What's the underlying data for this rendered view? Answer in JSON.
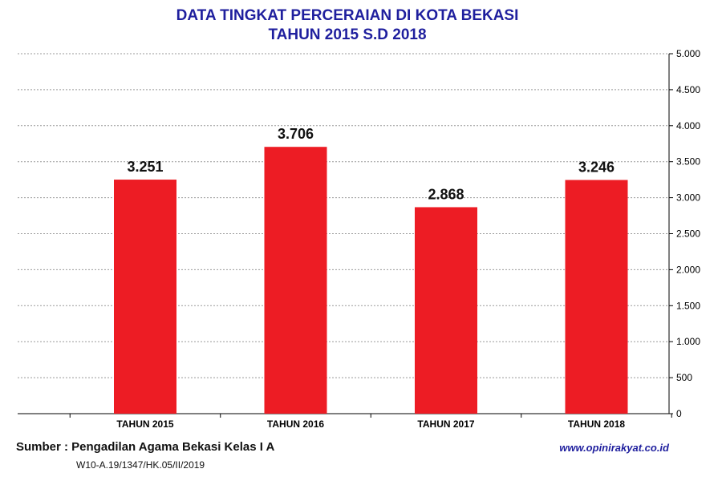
{
  "chart_data": {
    "type": "bar",
    "title": "DATA TINGKAT PERCERAIAN DI KOTA BEKASI",
    "subtitle": "TAHUN 2015 S.D 2018",
    "categories": [
      "TAHUN 2015",
      "TAHUN 2016",
      "TAHUN 2017",
      "TAHUN 2018"
    ],
    "values": [
      3251,
      3706,
      2868,
      3246
    ],
    "value_labels": [
      "3.251",
      "3.706",
      "2.868",
      "3.246"
    ],
    "ylim": [
      0,
      5000
    ],
    "y_ticks": [
      0,
      500,
      1000,
      1500,
      2000,
      2500,
      3000,
      3500,
      4000,
      4500,
      5000
    ],
    "y_tick_labels": [
      "0",
      "500",
      "1.000",
      "1.500",
      "2.000",
      "2.500",
      "3.000",
      "3.500",
      "4.000",
      "4.500",
      "5.000"
    ],
    "y_axis_side": "right",
    "grid": "horizontal dashed",
    "bar_color": "#ed1c24",
    "title_color": "#1f1f9e"
  },
  "footer": {
    "source": "Sumber : Pengadilan Agama Bekasi Kelas I A",
    "reference": "W10-A.19/1347/HK.05/II/2019",
    "website": "www.opinirakyat.co.id"
  }
}
